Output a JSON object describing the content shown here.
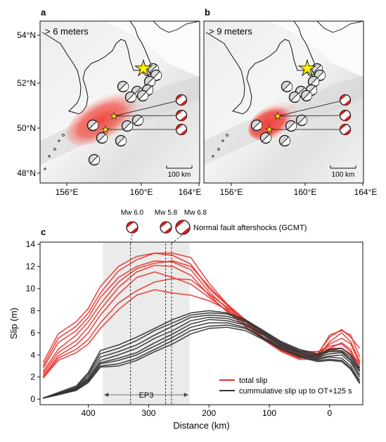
{
  "panels": {
    "a": {
      "letter": "a",
      "label": "> 6 meters"
    },
    "b": {
      "letter": "b",
      "label": "> 9 meters"
    },
    "c": {
      "letter": "c"
    }
  },
  "scale_bar": "100 km",
  "map_axes": {
    "lat_ticks": [
      "54°N",
      "52°N",
      "50°N",
      "48°N"
    ],
    "lon_ticks": [
      "156°E",
      "160°E",
      "164°E"
    ]
  },
  "colors": {
    "total_slip": "#e8302a",
    "cumulative_slip": "#333333",
    "mainshock_star": "#fff200",
    "ep3_band": "#ebebeb",
    "slip_patch": "#f04a3f",
    "beachball_compression": "#d42020"
  },
  "aftershocks": {
    "caption": "Normal fault aftershocks (GCMT)",
    "events": [
      {
        "label": "Mw 6.0",
        "distance_km": 330
      },
      {
        "label": "Mw 5.8",
        "distance_km": 272
      },
      {
        "label": "Mw 6.8",
        "distance_km": 262
      }
    ]
  },
  "ep3": {
    "label": "EP3",
    "from_km": 376,
    "to_km": 232
  },
  "chart_data": {
    "type": "line",
    "xlabel": "Distance (km)",
    "ylabel": "Slip (m)",
    "x_reversed": true,
    "xlim": [
      480,
      -55
    ],
    "ylim": [
      -0.5,
      14.2
    ],
    "x_ticks": [
      400,
      300,
      200,
      100,
      0
    ],
    "y_ticks": [
      0,
      2,
      4,
      6,
      8,
      10,
      12,
      14
    ],
    "x": [
      475,
      450,
      420,
      400,
      380,
      350,
      320,
      290,
      260,
      230,
      200,
      170,
      140,
      110,
      80,
      50,
      20,
      0,
      -20,
      -35,
      -50
    ],
    "legend": {
      "position": "lower-right",
      "entries": [
        "total slip",
        "cummulative slip up to OT+125 s"
      ]
    },
    "series": [
      {
        "name": "total slip",
        "group": "total",
        "values": [
          3.3,
          5.9,
          7.0,
          8.2,
          10.2,
          12.0,
          12.9,
          13.2,
          13.2,
          12.8,
          10.5,
          8.6,
          7.2,
          6.0,
          4.8,
          4.0,
          4.0,
          5.8,
          6.2,
          5.8,
          3.8
        ]
      },
      {
        "name": "total slip",
        "group": "total",
        "values": [
          3.0,
          5.5,
          6.6,
          7.8,
          9.6,
          11.6,
          12.6,
          13.2,
          13.0,
          12.2,
          10.0,
          8.5,
          7.0,
          5.8,
          4.6,
          3.8,
          3.8,
          5.2,
          6.0,
          5.2,
          3.4
        ]
      },
      {
        "name": "total slip",
        "group": "total",
        "values": [
          2.8,
          5.1,
          6.2,
          7.4,
          9.2,
          11.0,
          12.0,
          12.5,
          12.4,
          11.7,
          9.7,
          8.2,
          6.8,
          5.6,
          4.5,
          3.9,
          4.1,
          5.6,
          6.3,
          5.6,
          4.6
        ]
      },
      {
        "name": "total slip",
        "group": "total",
        "values": [
          2.5,
          4.5,
          5.8,
          7.0,
          8.6,
          10.6,
          11.8,
          12.3,
          12.5,
          12.0,
          10.2,
          8.5,
          7.0,
          5.6,
          4.4,
          3.7,
          4.0,
          5.0,
          5.5,
          5.0,
          3.2
        ]
      },
      {
        "name": "total slip",
        "group": "total",
        "values": [
          2.3,
          4.2,
          5.3,
          6.5,
          8.1,
          10.1,
          11.5,
          12.1,
          12.0,
          11.2,
          9.4,
          7.9,
          6.6,
          5.4,
          4.3,
          3.6,
          3.6,
          4.6,
          5.1,
          4.5,
          2.6
        ]
      },
      {
        "name": "total slip",
        "group": "total",
        "values": [
          2.1,
          3.9,
          4.9,
          6.0,
          7.6,
          9.5,
          11.0,
          11.5,
          11.0,
          10.4,
          9.2,
          8.0,
          6.8,
          5.5,
          4.4,
          3.8,
          3.8,
          4.4,
          4.6,
          4.0,
          2.9
        ]
      },
      {
        "name": "total slip",
        "group": "total",
        "values": [
          2.0,
          3.7,
          4.5,
          5.4,
          6.9,
          8.7,
          9.8,
          10.6,
          10.9,
          10.8,
          9.5,
          8.3,
          7.2,
          6.0,
          4.9,
          4.2,
          4.3,
          4.8,
          5.0,
          4.3,
          3.1
        ]
      },
      {
        "name": "total slip",
        "group": "total",
        "values": [
          1.9,
          3.5,
          4.2,
          5.0,
          6.4,
          8.1,
          9.4,
          9.9,
          9.6,
          9.4,
          8.9,
          8.1,
          7.2,
          6.2,
          5.1,
          4.3,
          4.3,
          4.6,
          4.6,
          4.1,
          3.2
        ]
      },
      {
        "name": "cummulative slip up to OT+125 s",
        "group": "cumulative",
        "values": [
          0.1,
          0.6,
          1.2,
          2.4,
          4.4,
          4.9,
          5.6,
          6.4,
          7.2,
          7.8,
          8.0,
          7.8,
          7.2,
          6.2,
          5.2,
          4.5,
          4.1,
          4.5,
          4.6,
          4.0,
          2.8
        ]
      },
      {
        "name": "cummulative slip up to OT+125 s",
        "group": "cumulative",
        "values": [
          0.1,
          0.5,
          1.1,
          2.3,
          4.1,
          4.6,
          5.3,
          6.2,
          6.9,
          7.6,
          7.8,
          7.7,
          7.1,
          6.1,
          5.1,
          4.4,
          4.0,
          4.4,
          4.4,
          3.8,
          2.6
        ]
      },
      {
        "name": "cummulative slip up to OT+125 s",
        "group": "cumulative",
        "values": [
          0.1,
          0.5,
          1.0,
          2.1,
          3.8,
          4.3,
          4.9,
          5.8,
          6.6,
          7.4,
          7.6,
          7.5,
          7.0,
          6.0,
          5.0,
          4.3,
          3.9,
          4.3,
          4.3,
          3.6,
          2.5
        ]
      },
      {
        "name": "cummulative slip up to OT+125 s",
        "group": "cumulative",
        "values": [
          0.1,
          0.5,
          1.0,
          1.9,
          3.5,
          4.0,
          4.6,
          5.5,
          6.2,
          7.1,
          7.4,
          7.3,
          6.8,
          5.9,
          4.9,
          4.2,
          3.8,
          4.1,
          4.2,
          3.5,
          2.2
        ]
      },
      {
        "name": "cummulative slip up to OT+125 s",
        "group": "cumulative",
        "values": [
          0.1,
          0.4,
          0.9,
          1.8,
          3.3,
          3.7,
          4.2,
          5.1,
          5.9,
          6.8,
          7.2,
          7.1,
          6.7,
          5.8,
          4.8,
          4.1,
          3.7,
          3.9,
          4.0,
          3.3,
          2.0
        ]
      },
      {
        "name": "cummulative slip up to OT+125 s",
        "group": "cumulative",
        "values": [
          0.1,
          0.4,
          0.9,
          1.7,
          3.2,
          3.5,
          4.0,
          4.8,
          5.6,
          6.5,
          6.9,
          6.9,
          6.5,
          5.6,
          4.7,
          4.0,
          3.6,
          3.8,
          3.7,
          3.0,
          1.7
        ]
      },
      {
        "name": "cummulative slip up to OT+125 s",
        "group": "cumulative",
        "values": [
          0.1,
          0.4,
          0.8,
          1.6,
          3.0,
          3.2,
          3.7,
          4.5,
          5.3,
          6.2,
          6.6,
          6.7,
          6.4,
          5.5,
          4.6,
          3.9,
          3.5,
          3.6,
          3.5,
          2.8,
          1.5
        ]
      },
      {
        "name": "cummulative slip up to OT+125 s",
        "group": "cumulative",
        "values": [
          0.1,
          0.4,
          0.8,
          1.5,
          2.9,
          3.0,
          3.5,
          4.3,
          5.0,
          5.9,
          6.4,
          6.5,
          6.2,
          5.4,
          4.5,
          3.8,
          3.4,
          3.5,
          3.4,
          2.7,
          1.4
        ]
      }
    ]
  }
}
